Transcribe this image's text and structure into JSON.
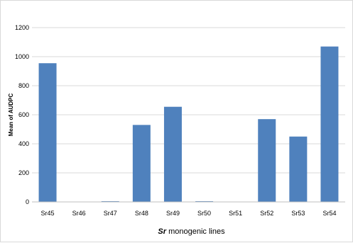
{
  "chart_data": {
    "type": "bar",
    "categories": [
      "Sr45",
      "Sr46",
      "Sr47",
      "Sr48",
      "Sr49",
      "Sr50",
      "Sr51",
      "Sr52",
      "Sr53",
      "Sr54"
    ],
    "values": [
      955,
      0,
      5,
      530,
      655,
      5,
      0,
      570,
      450,
      1070
    ],
    "xlabel_italic": "Sr",
    "xlabel_rest": " monogenic lines",
    "ylabel": "Mean of AUDPC",
    "ylim": [
      0,
      1200
    ],
    "yticks": [
      0,
      200,
      400,
      600,
      800,
      1000,
      1200
    ],
    "grid": true,
    "bar_color": "#4f81bd"
  }
}
